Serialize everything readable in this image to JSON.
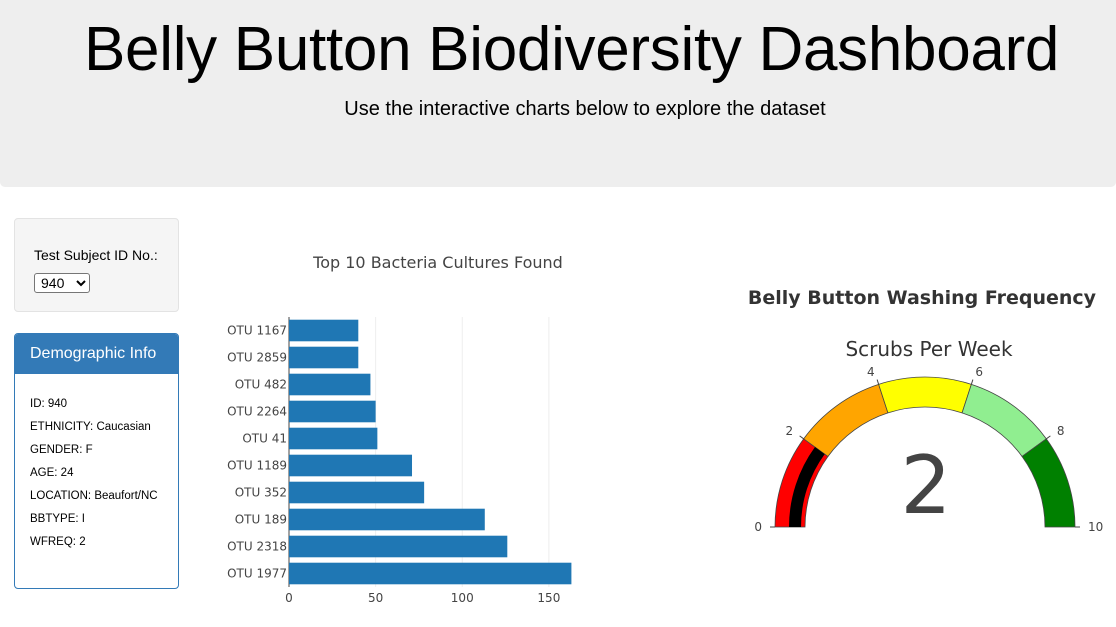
{
  "header": {
    "title": "Belly Button Biodiversity Dashboard",
    "subtitle": "Use the interactive charts below to explore the dataset"
  },
  "selector": {
    "label": "Test Subject ID No.:",
    "selected": "940"
  },
  "demographics": {
    "heading": "Demographic Info",
    "rows": [
      "ID: 940",
      "ETHNICITY: Caucasian",
      "GENDER: F",
      "AGE: 24",
      "LOCATION: Beaufort/NC",
      "BBTYPE: I",
      "WFREQ: 2"
    ]
  },
  "colors": {
    "bar": "#1f77b4",
    "header_bg": "#eeeeee",
    "panel_accent": "#337ab7"
  },
  "chart_data": [
    {
      "type": "bar",
      "orientation": "horizontal",
      "title": "Top 10 Bacteria Cultures Found",
      "categories": [
        "OTU 1167",
        "OTU 2859",
        "OTU 482",
        "OTU 2264",
        "OTU 41",
        "OTU 1189",
        "OTU 352",
        "OTU 189",
        "OTU 2318",
        "OTU 1977"
      ],
      "values": [
        40,
        40,
        47,
        50,
        51,
        71,
        78,
        113,
        126,
        163
      ],
      "xlim": [
        0,
        172
      ],
      "xticks": [
        "0",
        "50",
        "100",
        "150"
      ],
      "xtick_values": [
        0,
        50,
        100,
        150
      ],
      "grid": true
    },
    {
      "type": "gauge",
      "title": "Belly Button Washing Frequency",
      "subtitle": "Scrubs Per Week",
      "value": 2,
      "value_label": "2",
      "range": [
        0,
        10
      ],
      "ticks": [
        "0",
        "2",
        "4",
        "6",
        "8",
        "10"
      ],
      "tick_values": [
        0,
        2,
        4,
        6,
        8,
        10
      ],
      "steps": [
        {
          "range": [
            0,
            2
          ],
          "color": "#ff0000"
        },
        {
          "range": [
            2,
            4
          ],
          "color": "#ffa500"
        },
        {
          "range": [
            4,
            6
          ],
          "color": "#ffff00"
        },
        {
          "range": [
            6,
            8
          ],
          "color": "#90ee90"
        },
        {
          "range": [
            8,
            10
          ],
          "color": "#008000"
        }
      ],
      "bar_color": "#000000"
    }
  ]
}
